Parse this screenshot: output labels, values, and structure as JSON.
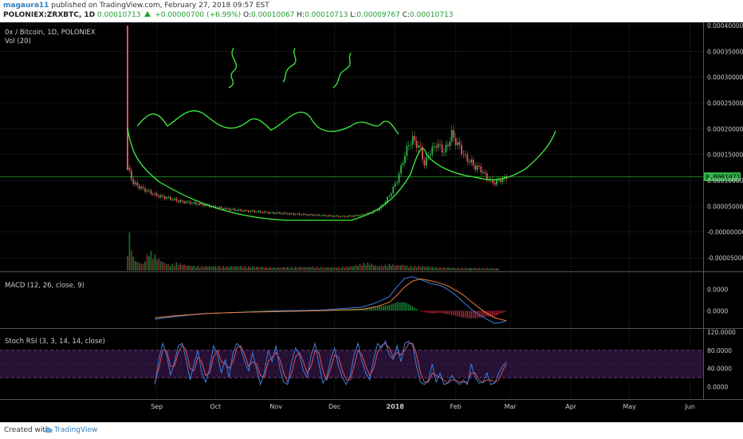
{
  "header": {
    "author": "magaura11",
    "published": "published on TradingView.com, February 27, 2018 09:57 EST",
    "symbol": "POLONIEX:ZRXBTC, 1D",
    "price": "0.00010713",
    "change": "+0.00000700 (+6.99%)",
    "o_label": "O:",
    "o": "0.00010067",
    "h_label": "H:",
    "h": "0.00010713",
    "l_label": "L:",
    "l": "0.00009767",
    "c_label": "C:",
    "c": "0.00010713"
  },
  "footer": {
    "created": "Created with",
    "brand": "TradingView"
  },
  "colors": {
    "background": "#000000",
    "grid": "#1d1d1d",
    "up": "#2fb34a",
    "down": "#e0525a",
    "drawing": "#3ef03e",
    "macd": "#3d7fe0",
    "signal": "#ef7d3a",
    "stoch_k": "#3d7fe0",
    "stoch_d": "#e0525a",
    "band": "#2a1238"
  },
  "chart_data": [
    {
      "type": "candlestick",
      "pane": "price",
      "legend": [
        "0x / Bitcoin, 1D, POLONIEX",
        "Vol (20)"
      ],
      "current_price_label": "0.00010713",
      "y_tick_labels": [
        "0.00040000",
        "0.00035000",
        "0.00030000",
        "0.00025000",
        "0.00020000",
        "0.00015000",
        "0.00010000",
        "0.00005000",
        "-0.00000000",
        "-0.00005000"
      ],
      "ylim": [
        -7e-05,
        0.0004
      ],
      "x_tick_labels": [
        "Sep",
        "Oct",
        "Nov",
        "Dec",
        "2018",
        "Feb",
        "Mar",
        "Apr",
        "May",
        "Jun"
      ],
      "x_tick_day_index": [
        15,
        45,
        76,
        106,
        137,
        168,
        196,
        227,
        257,
        288
      ],
      "close_series": {
        "day_index": [
          0,
          3,
          7,
          10,
          14,
          18,
          22,
          26,
          30,
          35,
          40,
          45,
          50,
          55,
          60,
          65,
          70,
          75,
          80,
          85,
          90,
          95,
          100,
          105,
          110,
          115,
          120,
          124,
          128,
          130,
          132,
          134,
          136,
          138,
          140,
          142,
          144,
          146,
          148,
          150,
          152,
          154,
          156,
          158,
          160,
          162,
          164,
          166,
          168,
          170,
          172,
          174,
          176,
          178,
          180,
          182,
          184,
          186,
          188,
          190,
          192,
          194
        ],
        "close": [
          0.000125,
          9.5e-05,
          8.5e-05,
          8e-05,
          7.2e-05,
          6.8e-05,
          6.5e-05,
          6e-05,
          5.8e-05,
          5.5e-05,
          5.2e-05,
          4.8e-05,
          4.5e-05,
          4.3e-05,
          4.1e-05,
          4e-05,
          3.8e-05,
          3.7e-05,
          3.6e-05,
          3.5e-05,
          3.4e-05,
          3.3e-05,
          3.2e-05,
          3.1e-05,
          3e-05,
          3.1e-05,
          3.3e-05,
          3.7e-05,
          4.3e-05,
          5e-05,
          6e-05,
          7e-05,
          8.5e-05,
          0.0001,
          0.000125,
          0.00015,
          0.00017,
          0.00018,
          0.00017,
          0.00016,
          0.00013,
          0.00015,
          0.00016,
          0.00017,
          0.000165,
          0.000155,
          0.00017,
          0.00019,
          0.000175,
          0.000165,
          0.00015,
          0.00014,
          0.000135,
          0.000125,
          0.000125,
          0.000115,
          0.000105,
          9.8e-05,
          9.5e-05,
          0.0001,
          0.000102,
          0.000107
        ]
      },
      "volume_series": {
        "day_index": [
          0,
          1,
          2,
          3,
          5,
          8,
          11,
          15,
          18,
          22,
          25,
          30,
          35,
          45,
          60,
          75,
          90,
          105,
          115,
          122,
          125,
          128,
          132,
          135,
          138,
          141,
          144,
          150,
          160,
          170,
          180,
          190
        ],
        "volume_relative": [
          0.2,
          0.32,
          0.24,
          0.12,
          0.08,
          0.06,
          0.18,
          0.12,
          0.08,
          0.05,
          0.07,
          0.05,
          0.04,
          0.04,
          0.04,
          0.03,
          0.035,
          0.03,
          0.04,
          0.07,
          0.06,
          0.04,
          0.05,
          0.06,
          0.05,
          0.055,
          0.04,
          0.04,
          0.03,
          0.025,
          0.025,
          0.02
        ]
      }
    },
    {
      "type": "line",
      "pane": "macd",
      "legend": "MACD (12, 26, close, 9)",
      "y_tick_labels": [
        "0.0000",
        "0.0000"
      ],
      "series": [
        {
          "name": "MACD",
          "day_index": [
            14,
            25,
            40,
            60,
            80,
            100,
            120,
            128,
            134,
            138,
            142,
            146,
            150,
            156,
            160,
            164,
            168,
            172,
            176,
            180,
            184,
            188,
            192,
            194
          ],
          "value": [
            -1.2e-05,
            -8e-06,
            -4e-06,
            -2e-06,
            0.0,
            1e-06,
            5e-06,
            1.2e-05,
            2e-05,
            3.4e-05,
            4.6e-05,
            4.8e-05,
            4.4e-05,
            3.8e-05,
            3.6e-05,
            3e-05,
            2.2e-05,
            1.2e-05,
            2e-06,
            -6e-06,
            -1.2e-05,
            -1.8e-05,
            -1.6e-05,
            -1.4e-05
          ]
        },
        {
          "name": "Signal",
          "day_index": [
            14,
            25,
            40,
            60,
            80,
            100,
            120,
            128,
            134,
            138,
            142,
            146,
            150,
            156,
            160,
            164,
            168,
            172,
            176,
            180,
            184,
            188,
            192,
            194
          ],
          "value": [
            -1e-05,
            -7e-06,
            -4e-06,
            -2e-06,
            -1e-06,
            0.0,
            2e-06,
            6e-06,
            1.2e-05,
            2.2e-05,
            3.4e-05,
            4.2e-05,
            4.5e-05,
            4.2e-05,
            3.9e-05,
            3.5e-05,
            2.9e-05,
            2.2e-05,
            1.3e-05,
            4e-06,
            -4e-06,
            -1e-05,
            -1.3e-05,
            -1.4e-05
          ]
        }
      ]
    },
    {
      "type": "line",
      "pane": "stoch_rsi",
      "legend": "Stoch RSI (3, 3, 14, 14, close)",
      "y_tick_labels": [
        "120.0000",
        "80.0000",
        "40.0000",
        "0.0000"
      ],
      "band": [
        20,
        80
      ],
      "series": [
        {
          "name": "K",
          "day_index": [
            14,
            16,
            18,
            20,
            22,
            24,
            26,
            28,
            30,
            32,
            34,
            36,
            38,
            40,
            42,
            44,
            46,
            48,
            50,
            52,
            54,
            56,
            58,
            60,
            62,
            64,
            66,
            68,
            70,
            72,
            74,
            76,
            78,
            80,
            82,
            84,
            86,
            88,
            90,
            92,
            94,
            96,
            98,
            100,
            102,
            104,
            106,
            108,
            110,
            112,
            114,
            116,
            118,
            120,
            122,
            124,
            126,
            128,
            130,
            132,
            134,
            136,
            138,
            140,
            142,
            144,
            146,
            148,
            150,
            152,
            154,
            156,
            158,
            160,
            162,
            164,
            166,
            168,
            170,
            172,
            174,
            176,
            178,
            180,
            182,
            184,
            186,
            188,
            190,
            192,
            194
          ],
          "value": [
            5,
            60,
            95,
            70,
            25,
            55,
            90,
            95,
            60,
            15,
            50,
            80,
            30,
            10,
            40,
            90,
            70,
            30,
            60,
            20,
            75,
            95,
            85,
            55,
            35,
            75,
            40,
            5,
            30,
            80,
            55,
            90,
            40,
            10,
            5,
            55,
            85,
            70,
            35,
            20,
            70,
            95,
            50,
            8,
            20,
            60,
            85,
            45,
            20,
            5,
            25,
            70,
            95,
            55,
            30,
            15,
            60,
            95,
            85,
            100,
            70,
            60,
            90,
            55,
            95,
            100,
            90,
            45,
            10,
            5,
            15,
            50,
            10,
            30,
            5,
            8,
            25,
            12,
            5,
            15,
            5,
            50,
            20,
            8,
            10,
            30,
            5,
            8,
            30,
            45,
            55
          ]
        },
        {
          "name": "D",
          "day_index": [
            14,
            16,
            18,
            20,
            22,
            24,
            26,
            28,
            30,
            32,
            34,
            36,
            38,
            40,
            42,
            44,
            46,
            48,
            50,
            52,
            54,
            56,
            58,
            60,
            62,
            64,
            66,
            68,
            70,
            72,
            74,
            76,
            78,
            80,
            82,
            84,
            86,
            88,
            90,
            92,
            94,
            96,
            98,
            100,
            102,
            104,
            106,
            108,
            110,
            112,
            114,
            116,
            118,
            120,
            122,
            124,
            126,
            128,
            130,
            132,
            134,
            136,
            138,
            140,
            142,
            144,
            146,
            148,
            150,
            152,
            154,
            156,
            158,
            160,
            162,
            164,
            166,
            168,
            170,
            172,
            174,
            176,
            178,
            180,
            182,
            184,
            186,
            188,
            190,
            192,
            194
          ],
          "value": [
            10,
            40,
            80,
            80,
            45,
            45,
            75,
            92,
            80,
            40,
            35,
            65,
            55,
            25,
            30,
            65,
            80,
            55,
            50,
            40,
            55,
            85,
            90,
            70,
            45,
            55,
            50,
            25,
            20,
            55,
            65,
            75,
            60,
            30,
            10,
            30,
            65,
            75,
            55,
            30,
            45,
            80,
            75,
            35,
            15,
            40,
            70,
            65,
            35,
            15,
            15,
            45,
            80,
            70,
            45,
            25,
            40,
            75,
            90,
            95,
            85,
            65,
            75,
            70,
            80,
            95,
            95,
            70,
            30,
            10,
            10,
            30,
            25,
            20,
            15,
            8,
            15,
            15,
            10,
            10,
            10,
            30,
            30,
            15,
            10,
            15,
            15,
            10,
            15,
            35,
            50
          ]
        }
      ]
    }
  ]
}
